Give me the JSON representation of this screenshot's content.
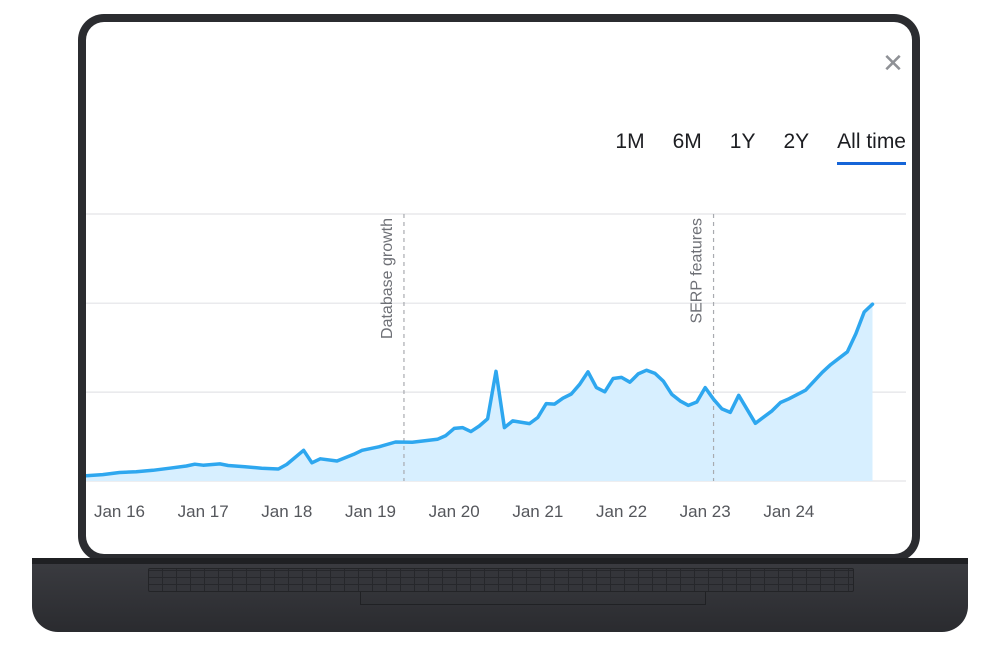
{
  "close_icon": "close-icon",
  "tabs": [
    {
      "label": "1M",
      "active": false
    },
    {
      "label": "6M",
      "active": false
    },
    {
      "label": "1Y",
      "active": false
    },
    {
      "label": "2Y",
      "active": false
    },
    {
      "label": "All time",
      "active": true
    }
  ],
  "colors": {
    "line": "#2ea7ef",
    "fill": "#d7efff",
    "accent": "#1565d8"
  },
  "chart_data": {
    "type": "area",
    "title": "",
    "xlabel": "",
    "ylabel": "",
    "grid": true,
    "x_ticks": [
      "Jan 16",
      "Jan 17",
      "Jan 18",
      "Jan 19",
      "Jan 20",
      "Jan 21",
      "Jan 22",
      "Jan 23",
      "Jan 24"
    ],
    "xlim": [
      2015.6,
      2025.4
    ],
    "ylim": [
      0,
      100
    ],
    "annotations": [
      {
        "label": "Database growth",
        "x": 2019.4
      },
      {
        "label": "SERP features",
        "x": 2023.1
      }
    ],
    "series": [
      {
        "x": [
          2015.6,
          2015.8,
          2016.0,
          2016.2,
          2016.4,
          2016.6,
          2016.8,
          2016.9,
          2017.0,
          2017.2,
          2017.3,
          2017.5,
          2017.7,
          2017.9,
          2018.0,
          2018.2,
          2018.3,
          2018.4,
          2018.6,
          2018.8,
          2018.9,
          2019.1,
          2019.3,
          2019.5,
          2019.8,
          2019.9,
          2020.0,
          2020.1,
          2020.2,
          2020.3,
          2020.4,
          2020.5,
          2020.6,
          2020.7,
          2020.9,
          2021.0,
          2021.1,
          2021.2,
          2021.3,
          2021.4,
          2021.5,
          2021.6,
          2021.7,
          2021.8,
          2021.9,
          2022.0,
          2022.1,
          2022.2,
          2022.3,
          2022.4,
          2022.5,
          2022.6,
          2022.7,
          2022.8,
          2022.9,
          2023.0,
          2023.1,
          2023.2,
          2023.3,
          2023.4,
          2023.6,
          2023.8,
          2023.9,
          2024.0,
          2024.2,
          2024.4,
          2024.5,
          2024.7,
          2024.8,
          2024.9,
          2025.0
        ],
        "y": [
          2,
          2.4,
          3.2,
          3.5,
          4,
          4.8,
          5.6,
          6.3,
          5.9,
          6.4,
          5.8,
          5.3,
          4.8,
          4.5,
          6.2,
          11.5,
          6.8,
          8.3,
          7.5,
          10,
          11.5,
          12.8,
          14.6,
          14.5,
          15.6,
          17,
          19.7,
          20,
          18.5,
          20.6,
          23.3,
          41.1,
          20,
          22.5,
          21.5,
          23.8,
          29,
          28.8,
          31,
          32.6,
          36.2,
          40.9,
          35,
          33.4,
          38.4,
          38.8,
          37,
          40.1,
          41.5,
          40.3,
          37.4,
          32.5,
          30,
          28.3,
          29.6,
          35,
          30.6,
          27,
          25.7,
          32.1,
          21.6,
          26.3,
          29.4,
          30.8,
          34,
          40.7,
          43.6,
          48.4,
          55.1,
          63.3,
          66.2
        ]
      }
    ]
  }
}
